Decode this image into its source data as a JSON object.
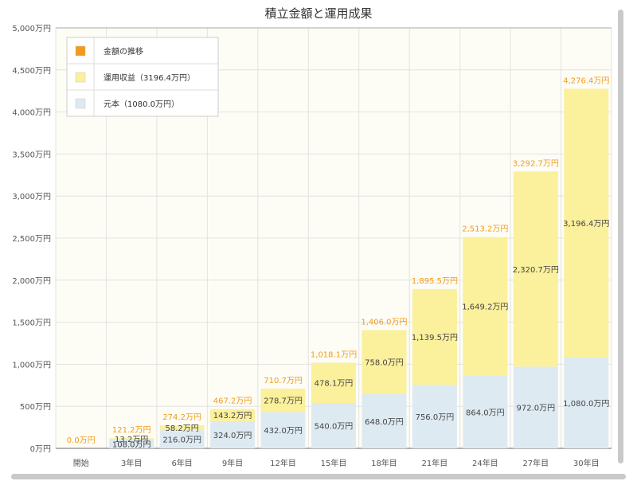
{
  "chart_data": {
    "type": "bar",
    "stacked": true,
    "title": "積立金額と運用成果",
    "categories": [
      "開始",
      "3年目",
      "6年目",
      "9年目",
      "12年目",
      "15年目",
      "18年目",
      "21年目",
      "24年目",
      "27年目",
      "30年目"
    ],
    "series": [
      {
        "name": "元本（1080.0万円）",
        "color": "#deeaf2",
        "values": [
          0.0,
          108.0,
          216.0,
          324.0,
          432.0,
          540.0,
          648.0,
          756.0,
          864.0,
          972.0,
          1080.0
        ],
        "labels": [
          "",
          "108.0万円",
          "216.0万円",
          "324.0万円",
          "432.0万円",
          "540.0万円",
          "648.0万円",
          "756.0万円",
          "864.0万円",
          "972.0万円",
          "1,080.0万円"
        ]
      },
      {
        "name": "運用収益（3196.4万円）",
        "color": "#fbf09c",
        "values": [
          0.0,
          13.2,
          58.2,
          143.2,
          278.7,
          478.1,
          758.0,
          1139.5,
          1649.2,
          2320.7,
          3196.4
        ],
        "labels": [
          "",
          "13.2万円",
          "58.2万円",
          "143.2万円",
          "278.7万円",
          "478.1万円",
          "758.0万円",
          "1,139.5万円",
          "1,649.2万円",
          "2,320.7万円",
          "3,196.4万円"
        ]
      }
    ],
    "totals": {
      "name": "金額の推移",
      "color": "#f29a1a",
      "values": [
        0.0,
        121.2,
        274.2,
        467.2,
        710.7,
        1018.1,
        1406.0,
        1895.5,
        2513.2,
        3292.7,
        4276.4
      ],
      "labels": [
        "0.0万円",
        "121.2万円",
        "274.2万円",
        "467.2万円",
        "710.7万円",
        "1,018.1万円",
        "1,406.0万円",
        "1,895.5万円",
        "2,513.2万円",
        "3,292.7万円",
        "4,276.4万円"
      ]
    },
    "ylim": [
      0,
      5000
    ],
    "yticks": [
      0,
      500,
      1000,
      1500,
      2000,
      2500,
      3000,
      3500,
      4000,
      4500,
      5000
    ],
    "ytick_labels": [
      "0万円",
      "500万円",
      "1,000万円",
      "1,500万円",
      "2,000万円",
      "2,500万円",
      "3,000万円",
      "3,500万円",
      "4,000万円",
      "4,500万円",
      "5,000万円"
    ],
    "grid": true,
    "legend_position": "top-left",
    "legend": [
      "金額の推移",
      "運用収益（3196.4万円）",
      "元本（1080.0万円）"
    ],
    "colors": {
      "background": "#fdfdf6",
      "grid": "#e2e2e2",
      "axis": "#aaaaaa",
      "total_label": "#f29a1a",
      "bar_label": "#444444",
      "tick_label": "#555555"
    }
  }
}
